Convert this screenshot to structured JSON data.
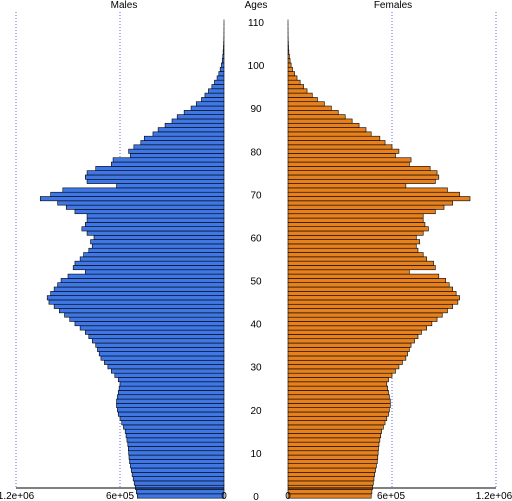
{
  "chart_data": {
    "type": "bar",
    "orientation": "horizontal-pyramid",
    "colors": {
      "males": "#3f78e6",
      "females": "#e6811e",
      "grid": "#6666dd",
      "outline": "#000000"
    },
    "panels": {
      "left_title": "Males",
      "center_title": "Ages",
      "right_title": "Females"
    },
    "x_ticks": {
      "male": [
        "1.2e+06",
        "6e+05",
        "0"
      ],
      "female": [
        "0",
        "6e+05",
        "1.2e+06"
      ],
      "values": [
        1200000,
        600000,
        0
      ]
    },
    "xlim": [
      0,
      1200000
    ],
    "age_ticks": [
      "0",
      "10",
      "20",
      "30",
      "40",
      "50",
      "60",
      "70",
      "80",
      "90",
      "100",
      "110"
    ],
    "ages": [
      0,
      1,
      2,
      3,
      4,
      5,
      6,
      7,
      8,
      9,
      10,
      11,
      12,
      13,
      14,
      15,
      16,
      17,
      18,
      19,
      20,
      21,
      22,
      23,
      24,
      25,
      26,
      27,
      28,
      29,
      30,
      31,
      32,
      33,
      34,
      35,
      36,
      37,
      38,
      39,
      40,
      41,
      42,
      43,
      44,
      45,
      46,
      47,
      48,
      49,
      50,
      51,
      52,
      53,
      54,
      55,
      56,
      57,
      58,
      59,
      60,
      61,
      62,
      63,
      64,
      65,
      66,
      67,
      68,
      69,
      70,
      71,
      72,
      73,
      74,
      75,
      76,
      77,
      78,
      79,
      80,
      81,
      82,
      83,
      84,
      85,
      86,
      87,
      88,
      89,
      90,
      91,
      92,
      93,
      94,
      95,
      96,
      97,
      98,
      99,
      100,
      101,
      102,
      103,
      104,
      105,
      106,
      107,
      108,
      109,
      110
    ],
    "series": [
      {
        "name": "Males",
        "values": [
          500000,
          506000,
          512000,
          518000,
          524000,
          530000,
          535000,
          540000,
          545000,
          548000,
          550000,
          552000,
          555000,
          560000,
          565000,
          570000,
          580000,
          590000,
          600000,
          610000,
          615000,
          620000,
          620000,
          615000,
          610000,
          605000,
          600000,
          610000,
          630000,
          650000,
          670000,
          690000,
          710000,
          720000,
          730000,
          740000,
          760000,
          780000,
          800000,
          830000,
          860000,
          890000,
          920000,
          950000,
          980000,
          1010000,
          1020000,
          1000000,
          980000,
          960000,
          940000,
          900000,
          800000,
          870000,
          860000,
          830000,
          810000,
          780000,
          760000,
          770000,
          750000,
          790000,
          820000,
          800000,
          790000,
          790000,
          860000,
          910000,
          960000,
          1060000,
          1000000,
          930000,
          620000,
          790000,
          800000,
          790000,
          740000,
          650000,
          640000,
          540000,
          550000,
          520000,
          480000,
          460000,
          410000,
          380000,
          340000,
          300000,
          270000,
          230000,
          190000,
          160000,
          130000,
          110000,
          90000,
          70000,
          55000,
          40000,
          30000,
          22000,
          15000,
          10000,
          7000,
          5000,
          3000,
          2000,
          1000,
          500,
          300,
          100,
          50
        ]
      },
      {
        "name": "Females",
        "values": [
          480000,
          484000,
          488000,
          492000,
          496000,
          500000,
          505000,
          510000,
          515000,
          518000,
          520000,
          522000,
          525000,
          530000,
          535000,
          540000,
          550000,
          560000,
          570000,
          580000,
          585000,
          590000,
          590000,
          585000,
          580000,
          575000,
          570000,
          580000,
          600000,
          620000,
          640000,
          660000,
          680000,
          690000,
          700000,
          710000,
          730000,
          750000,
          770000,
          800000,
          830000,
          860000,
          890000,
          920000,
          950000,
          980000,
          990000,
          970000,
          950000,
          930000,
          910000,
          870000,
          700000,
          850000,
          840000,
          800000,
          780000,
          750000,
          740000,
          760000,
          740000,
          780000,
          810000,
          790000,
          780000,
          780000,
          850000,
          900000,
          950000,
          1050000,
          990000,
          920000,
          680000,
          850000,
          870000,
          860000,
          820000,
          700000,
          710000,
          620000,
          640000,
          600000,
          560000,
          530000,
          480000,
          450000,
          410000,
          370000,
          330000,
          290000,
          250000,
          210000,
          170000,
          140000,
          110000,
          90000,
          70000,
          52000,
          38000,
          26000,
          18000,
          12000,
          8000,
          5000,
          3000,
          2000,
          1000,
          500,
          300,
          100,
          50
        ]
      }
    ]
  }
}
